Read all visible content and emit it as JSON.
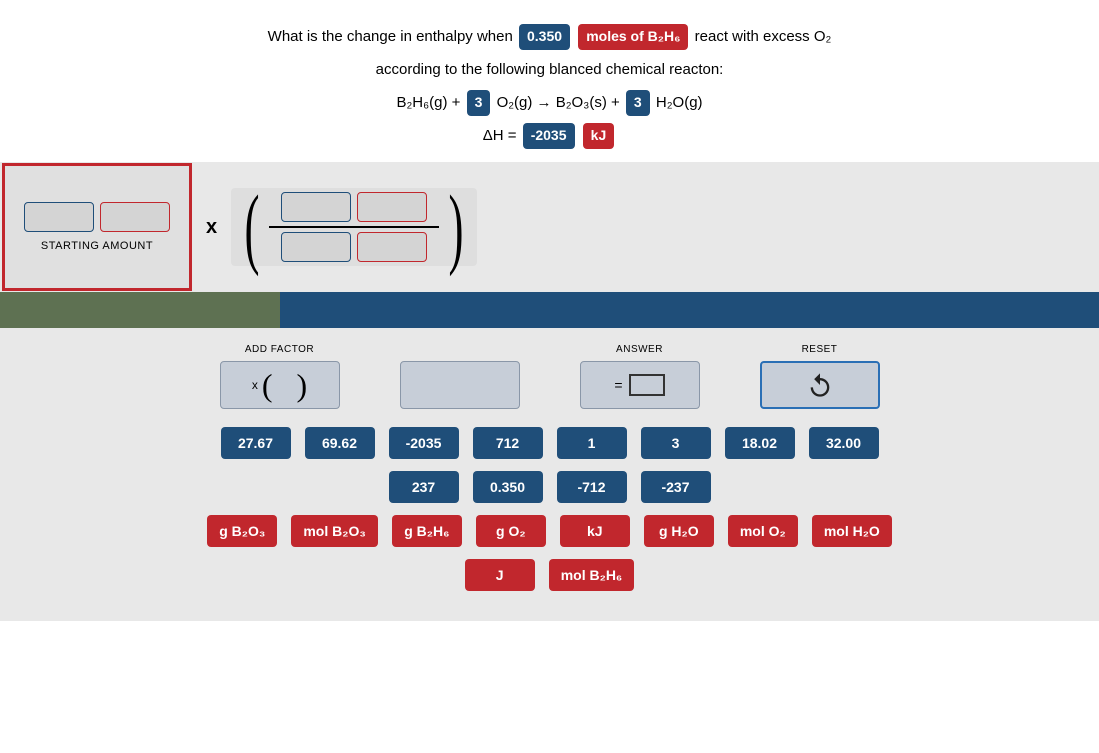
{
  "question": {
    "line1_pre": "What is the change in enthalpy when",
    "amount_value": "0.350",
    "amount_unit_html": "moles of B₂H₆",
    "line1_post_html": "react with excess O₂",
    "line2": "according to the following blanced chemical reacton:",
    "eq_left_html": "B₂H₆(g) +",
    "coeff1": "3",
    "eq_mid_html": "O₂(g) → B₂O₃(s) +",
    "coeff2": "3",
    "eq_right_html": "H₂O(g)",
    "dh_label": "ΔH =",
    "dh_value": "-2035",
    "dh_unit": "kJ"
  },
  "workspace": {
    "starting_amount_label": "STARTING AMOUNT",
    "multiply_symbol": "x"
  },
  "controls": {
    "add_factor_label": "ADD FACTOR",
    "add_factor_symbol": "x (   )",
    "answer_label": "ANSWER",
    "reset_label": "RESET"
  },
  "tiles": {
    "numbers_row1": [
      "27.67",
      "69.62",
      "-2035",
      "712",
      "1",
      "3",
      "18.02",
      "32.00"
    ],
    "numbers_row2": [
      "237",
      "0.350",
      "-712",
      "-237"
    ],
    "units_row1_html": [
      "g B₂O₃",
      "mol B₂O₃",
      "g B₂H₆",
      "g O₂",
      "kJ",
      "g H₂O",
      "mol O₂",
      "mol H₂O"
    ],
    "units_row2_html": [
      "J",
      "mol B₂H₆"
    ]
  },
  "colors": {
    "blue": "#1f4e79",
    "red": "#c1272d",
    "green_bar": "#5e7152",
    "panel_bg": "#e8e8e8",
    "ctrl_bg": "#c7ced8"
  }
}
